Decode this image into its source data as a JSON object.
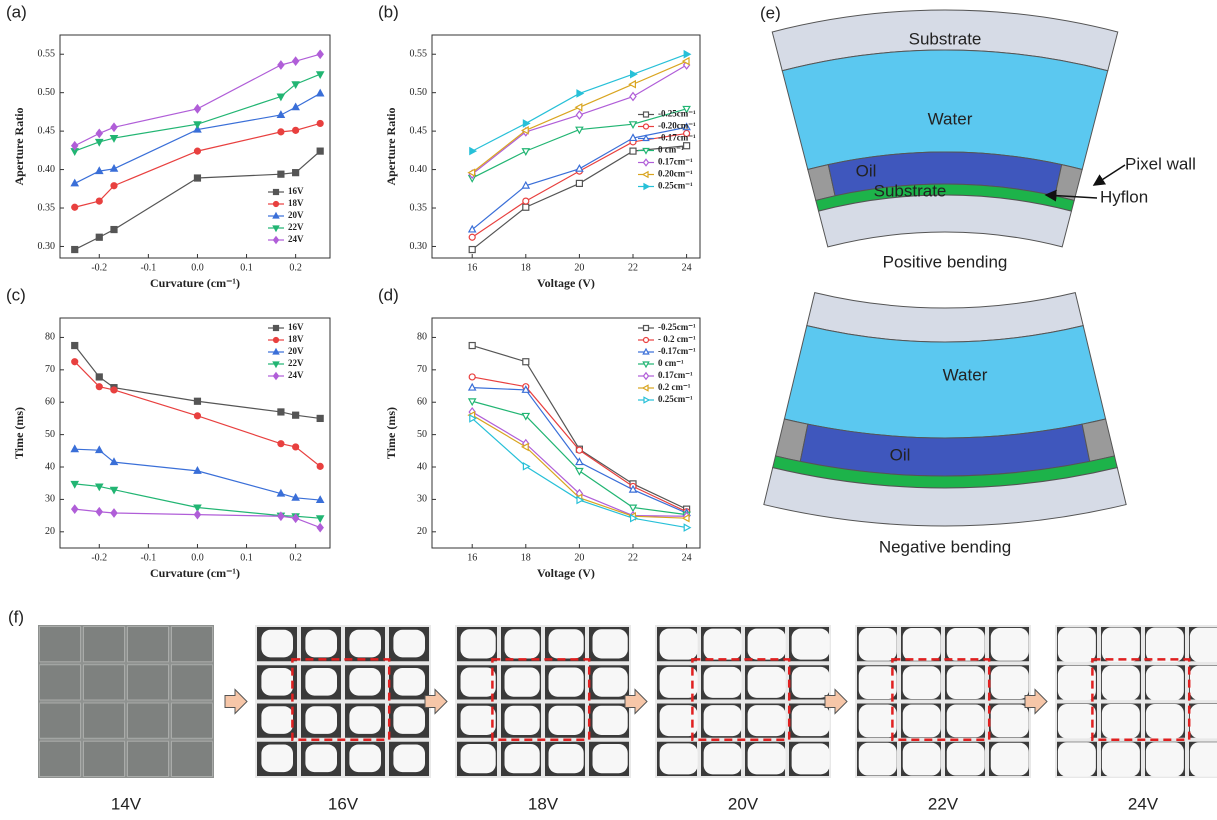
{
  "chart_data": [
    {
      "type": "line",
      "panel_label": "(a)",
      "x_label": "Curvature (cm⁻¹)",
      "y_label": "Aperture Ratio",
      "x": [
        -0.25,
        -0.2,
        -0.17,
        0,
        0.17,
        0.2,
        0.25
      ],
      "xlim": [
        -0.28,
        0.27
      ],
      "xticks": [
        -0.2,
        -0.1,
        {
          "value": 0,
          "label": "0.0"
        },
        0.1,
        0.2
      ],
      "ylim": [
        0.285,
        0.575
      ],
      "yticks": [
        {
          "value": 0.3,
          "label": "0.30"
        },
        0.35,
        {
          "value": 0.4,
          "label": "0.40"
        },
        0.45,
        {
          "value": 0.5,
          "label": "0.50"
        },
        0.55
      ],
      "legend": "lower right",
      "series": [
        {
          "name": "16V",
          "color": "#555555",
          "marker": "square",
          "filled": true,
          "values": [
            0.296,
            0.312,
            0.322,
            0.389,
            0.394,
            0.396,
            0.424
          ]
        },
        {
          "name": "18V",
          "color": "#e8403f",
          "marker": "circle",
          "filled": true,
          "values": [
            0.351,
            0.359,
            0.379,
            0.424,
            0.449,
            0.451,
            0.46
          ]
        },
        {
          "name": "20V",
          "color": "#3a6fd8",
          "marker": "triangle-up",
          "filled": true,
          "values": [
            0.382,
            0.398,
            0.401,
            0.452,
            0.471,
            0.481,
            0.499
          ]
        },
        {
          "name": "22V",
          "color": "#22b573",
          "marker": "triangle-down",
          "filled": true,
          "values": [
            0.424,
            0.436,
            0.441,
            0.459,
            0.495,
            0.511,
            0.524
          ]
        },
        {
          "name": "24V",
          "color": "#b05ed8",
          "marker": "diamond",
          "filled": true,
          "values": [
            0.431,
            0.447,
            0.455,
            0.479,
            0.536,
            0.541,
            0.55
          ]
        }
      ]
    },
    {
      "type": "line",
      "panel_label": "(b)",
      "x_label": "Voltage (V)",
      "y_label": "Aperture Ratio",
      "x": [
        16,
        18,
        20,
        22,
        24
      ],
      "xlim": [
        14.5,
        24.5
      ],
      "xticks": [
        16,
        18,
        20,
        22,
        24
      ],
      "ylim": [
        0.285,
        0.575
      ],
      "yticks": [
        {
          "value": 0.3,
          "label": "0.30"
        },
        0.35,
        {
          "value": 0.4,
          "label": "0.40"
        },
        0.45,
        {
          "value": 0.5,
          "label": "0.50"
        },
        0.55
      ],
      "legend": "center right",
      "series": [
        {
          "name": "-0.25cm⁻¹",
          "color": "#555555",
          "marker": "square",
          "filled": false,
          "values": [
            0.296,
            0.351,
            0.382,
            0.424,
            0.431
          ]
        },
        {
          "name": "-0.20cm⁻¹",
          "color": "#e8403f",
          "marker": "circle",
          "filled": false,
          "values": [
            0.312,
            0.359,
            0.398,
            0.436,
            0.447
          ]
        },
        {
          "name": "-0.17cm⁻¹",
          "color": "#3a6fd8",
          "marker": "triangle-up",
          "filled": false,
          "values": [
            0.322,
            0.379,
            0.401,
            0.441,
            0.455
          ]
        },
        {
          "name": "0   cm⁻¹",
          "color": "#22b573",
          "marker": "triangle-down",
          "filled": false,
          "values": [
            0.389,
            0.424,
            0.452,
            0.459,
            0.479
          ]
        },
        {
          "name": "0.17cm⁻¹",
          "color": "#b05ed8",
          "marker": "diamond",
          "filled": false,
          "values": [
            0.394,
            0.449,
            0.471,
            0.495,
            0.536
          ]
        },
        {
          "name": "0.20cm⁻¹",
          "color": "#d9a520",
          "marker": "triangle-left",
          "filled": false,
          "values": [
            0.396,
            0.451,
            0.481,
            0.511,
            0.541
          ]
        },
        {
          "name": "0.25cm⁻¹",
          "color": "#27c0d8",
          "marker": "triangle-right",
          "filled": true,
          "values": [
            0.424,
            0.46,
            0.499,
            0.524,
            0.55
          ]
        }
      ]
    },
    {
      "type": "line",
      "panel_label": "(c)",
      "x_label": "Curvature (cm⁻¹)",
      "y_label": "Time (ms)",
      "x": [
        -0.25,
        -0.2,
        -0.17,
        0,
        0.17,
        0.2,
        0.25
      ],
      "xlim": [
        -0.28,
        0.27
      ],
      "xticks": [
        -0.2,
        -0.1,
        {
          "value": 0,
          "label": "0.0"
        },
        0.1,
        0.2
      ],
      "ylim": [
        15,
        86
      ],
      "yticks": [
        20,
        30,
        40,
        50,
        60,
        70,
        80
      ],
      "legend": "upper right",
      "series": [
        {
          "name": "16V",
          "color": "#555555",
          "marker": "square",
          "filled": true,
          "values": [
            77.5,
            67.8,
            64.5,
            60.3,
            57,
            56,
            55
          ]
        },
        {
          "name": "18V",
          "color": "#e8403f",
          "marker": "circle",
          "filled": true,
          "values": [
            72.5,
            64.8,
            63.8,
            55.8,
            47.2,
            46.2,
            40.2
          ]
        },
        {
          "name": "20V",
          "color": "#3a6fd8",
          "marker": "triangle-up",
          "filled": true,
          "values": [
            45.5,
            45.2,
            41.5,
            38.8,
            31.8,
            30.5,
            29.8
          ]
        },
        {
          "name": "22V",
          "color": "#22b573",
          "marker": "triangle-down",
          "filled": true,
          "values": [
            34.8,
            34,
            33,
            27.5,
            25,
            24.8,
            24.2
          ]
        },
        {
          "name": "24V",
          "color": "#b05ed8",
          "marker": "diamond",
          "filled": true,
          "values": [
            27,
            26.2,
            25.8,
            25.3,
            24.8,
            24.2,
            21.3
          ]
        }
      ]
    },
    {
      "type": "line",
      "panel_label": "(d)",
      "x_label": "Voltage (V)",
      "y_label": "Time (ms)",
      "x": [
        16,
        18,
        20,
        22,
        24
      ],
      "xlim": [
        14.5,
        24.5
      ],
      "xticks": [
        16,
        18,
        20,
        22,
        24
      ],
      "ylim": [
        15,
        86
      ],
      "yticks": [
        20,
        30,
        40,
        50,
        60,
        70,
        80
      ],
      "legend": "upper right",
      "series": [
        {
          "name": "-0.25cm⁻¹",
          "color": "#555555",
          "marker": "square",
          "filled": false,
          "values": [
            77.5,
            72.5,
            45.5,
            34.8,
            27
          ]
        },
        {
          "name": "- 0.2 cm⁻¹",
          "color": "#e8403f",
          "marker": "circle",
          "filled": false,
          "values": [
            67.8,
            64.8,
            45.2,
            34,
            26.2
          ]
        },
        {
          "name": "-0.17cm⁻¹",
          "color": "#3a6fd8",
          "marker": "triangle-up",
          "filled": false,
          "values": [
            64.5,
            63.8,
            41.5,
            33,
            25.8
          ]
        },
        {
          "name": "0   cm⁻¹",
          "color": "#22b573",
          "marker": "triangle-down",
          "filled": false,
          "values": [
            60.3,
            55.8,
            38.8,
            27.5,
            25.3
          ]
        },
        {
          "name": "0.17cm⁻¹",
          "color": "#b05ed8",
          "marker": "diamond",
          "filled": false,
          "values": [
            57,
            47.2,
            31.8,
            25,
            24.8
          ]
        },
        {
          "name": "0.2 cm⁻¹",
          "color": "#d9a520",
          "marker": "triangle-left",
          "filled": false,
          "values": [
            56,
            46.2,
            30.5,
            24.8,
            24.2
          ]
        },
        {
          "name": "0.25cm⁻¹",
          "color": "#27c0d8",
          "marker": "triangle-right",
          "filled": false,
          "values": [
            55,
            40.2,
            29.8,
            24.2,
            21.3
          ]
        }
      ]
    }
  ],
  "diagram": {
    "panel_label": "(e)",
    "positive": {
      "top": "Substrate",
      "water": "Water",
      "oil": "Oil",
      "bottom": "Substrate",
      "pixel_wall": "Pixel wall",
      "hyflon": "Hyflon",
      "caption": "Positive bending"
    },
    "negative": {
      "water": "Water",
      "oil": "Oil",
      "caption": "Negative bending"
    }
  },
  "images": {
    "panel_label": "(f)",
    "labels": [
      "14V",
      "16V",
      "18V",
      "20V",
      "22V",
      "24V"
    ]
  }
}
